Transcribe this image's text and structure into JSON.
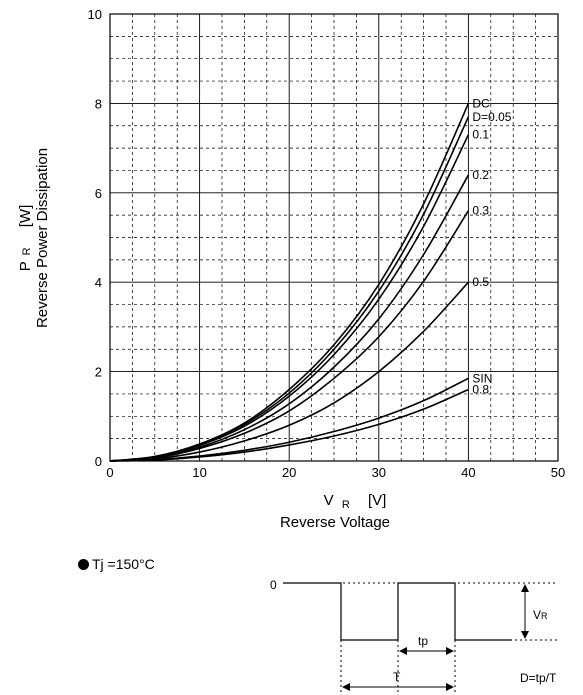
{
  "chart_data": {
    "type": "line",
    "xlabel_symbol": "V",
    "xlabel_sub": "R",
    "xlabel_unit": "[V]",
    "xlabel_name": "Reverse Voltage",
    "ylabel_symbol": "P",
    "ylabel_sub": "R",
    "ylabel_unit": "[W]",
    "ylabel_name": "Reverse Power Dissipation",
    "xlim": [
      0,
      50
    ],
    "ylim": [
      0,
      10
    ],
    "xticks": [
      "0",
      "10",
      "20",
      "30",
      "40",
      "50"
    ],
    "yticks": [
      "0",
      "2",
      "4",
      "6",
      "8",
      "10"
    ],
    "grid": true,
    "series": [
      {
        "name": "DC",
        "x": [
          0,
          5,
          10,
          15,
          20,
          25,
          30,
          35,
          40
        ],
        "y": [
          0,
          0.1,
          0.38,
          0.85,
          1.6,
          2.6,
          3.95,
          5.75,
          8.0
        ]
      },
      {
        "name": "D=0.05",
        "x": [
          0,
          5,
          10,
          15,
          20,
          25,
          30,
          35,
          40
        ],
        "y": [
          0,
          0.1,
          0.37,
          0.82,
          1.52,
          2.5,
          3.8,
          5.52,
          7.7
        ]
      },
      {
        "name": "0.1",
        "x": [
          0,
          5,
          10,
          15,
          20,
          25,
          30,
          35,
          40
        ],
        "y": [
          0,
          0.09,
          0.35,
          0.78,
          1.45,
          2.38,
          3.62,
          5.25,
          7.3
        ]
      },
      {
        "name": "0.2",
        "x": [
          0,
          5,
          10,
          15,
          20,
          25,
          30,
          35,
          40
        ],
        "y": [
          0,
          0.08,
          0.31,
          0.7,
          1.28,
          2.1,
          3.18,
          4.62,
          6.4
        ]
      },
      {
        "name": "0.3",
        "x": [
          0,
          5,
          10,
          15,
          20,
          25,
          30,
          35,
          40
        ],
        "y": [
          0,
          0.07,
          0.28,
          0.62,
          1.12,
          1.85,
          2.78,
          4.02,
          5.6
        ]
      },
      {
        "name": "0.5",
        "x": [
          0,
          5,
          10,
          15,
          20,
          25,
          30,
          35,
          40
        ],
        "y": [
          0,
          0.05,
          0.2,
          0.45,
          0.8,
          1.3,
          2.0,
          2.9,
          4.0
        ]
      },
      {
        "name": "SIN",
        "x": [
          0,
          5,
          10,
          15,
          20,
          25,
          30,
          35,
          40
        ],
        "y": [
          0,
          0.03,
          0.11,
          0.24,
          0.42,
          0.66,
          0.96,
          1.35,
          1.85
        ]
      },
      {
        "name": "0.8",
        "x": [
          0,
          5,
          10,
          15,
          20,
          25,
          30,
          35,
          40
        ],
        "y": [
          0,
          0.02,
          0.09,
          0.2,
          0.36,
          0.56,
          0.82,
          1.16,
          1.6
        ]
      }
    ]
  },
  "condition": {
    "text": "Tj =150°C"
  },
  "waveform": {
    "zero_label": "0",
    "tp_label": "tp",
    "T_label": "T",
    "vr_symbol": "V",
    "vr_sub": "R",
    "duty_formula": "D=tp/T"
  }
}
